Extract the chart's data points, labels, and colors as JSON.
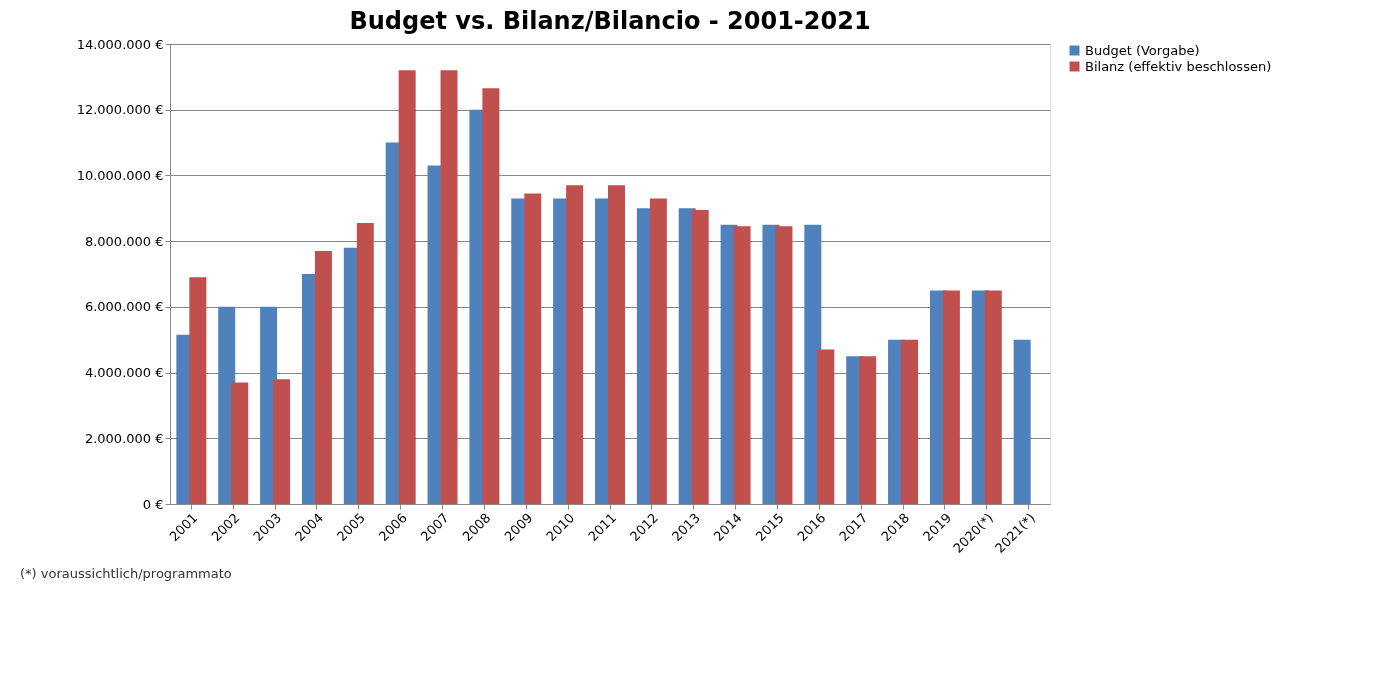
{
  "chart_data": {
    "type": "bar",
    "title": "Budget vs. Bilanz/Bilancio - 2001-2021",
    "categories": [
      "2001",
      "2002",
      "2003",
      "2004",
      "2005",
      "2006",
      "2007",
      "2008",
      "2009",
      "2010",
      "2011",
      "2012",
      "2013",
      "2014",
      "2015",
      "2016",
      "2017",
      "2018",
      "2019",
      "2020(*)",
      "2021(*)"
    ],
    "series": [
      {
        "name": "Budget (Vorgabe)",
        "color": "#4f81bd",
        "values": [
          5150000,
          6000000,
          6000000,
          7000000,
          7800000,
          11000000,
          10300000,
          12000000,
          9300000,
          9300000,
          9300000,
          9000000,
          9000000,
          8500000,
          8500000,
          8500000,
          4500000,
          5000000,
          6500000,
          6500000,
          5000000
        ]
      },
      {
        "name": "Bilanz (effektiv beschlossen)",
        "color": "#c0504d",
        "values": [
          6900000,
          3700000,
          3800000,
          7700000,
          8550000,
          13200000,
          13200000,
          12650000,
          9450000,
          9700000,
          9700000,
          9300000,
          8950000,
          8450000,
          8450000,
          4700000,
          4500000,
          5000000,
          6500000,
          6500000,
          null
        ]
      }
    ],
    "ylim": [
      0,
      14000000
    ],
    "yticks": [
      {
        "value": 0,
        "label": "0 €"
      },
      {
        "value": 2000000,
        "label": "2.000.000 €"
      },
      {
        "value": 4000000,
        "label": "4.000.000 €"
      },
      {
        "value": 6000000,
        "label": "6.000.000 €"
      },
      {
        "value": 8000000,
        "label": "8.000.000 €"
      },
      {
        "value": 10000000,
        "label": "10.000.000 €"
      },
      {
        "value": 12000000,
        "label": "12.000.000 €"
      },
      {
        "value": 14000000,
        "label": "14.000.000 €"
      }
    ],
    "grid": "y",
    "legend": "right",
    "annotations": [
      "(*) voraussichtlich/programmato"
    ]
  }
}
